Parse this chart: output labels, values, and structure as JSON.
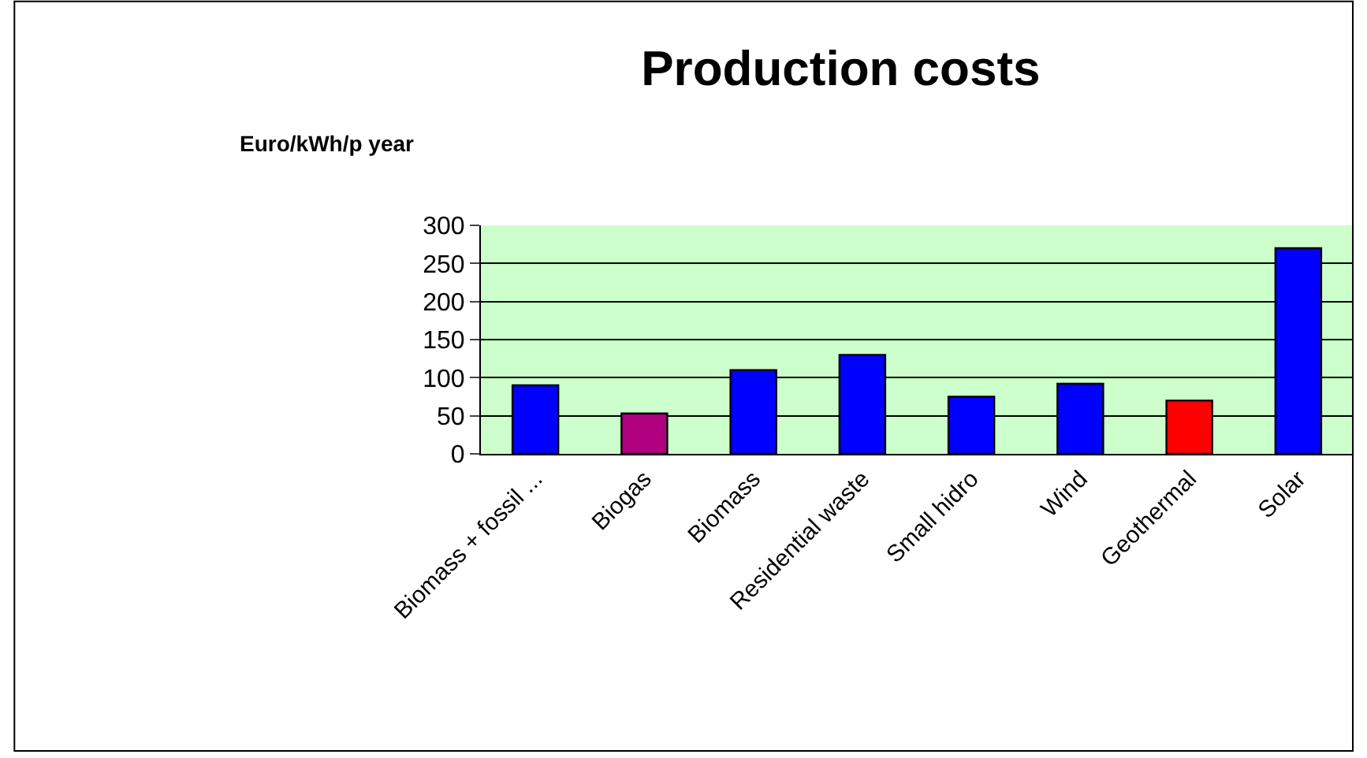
{
  "chart_data": {
    "type": "bar",
    "title": "Production costs",
    "ylabel": "Euro/kWh/p year",
    "categories": [
      "Biomass + fossil ...",
      "Biogas",
      "Biomass",
      "Residential waste",
      "Small hidro",
      "Wind",
      "Geothermal",
      "Solar"
    ],
    "values": [
      90,
      53,
      110,
      130,
      75,
      92,
      70,
      270
    ],
    "colors": [
      "#0000ff",
      "#b0007f",
      "#0000ff",
      "#0000ff",
      "#0000ff",
      "#0000ff",
      "#ff0000",
      "#0000ff"
    ],
    "ylim": [
      0,
      300
    ],
    "yticks": [
      0,
      50,
      100,
      150,
      200,
      250,
      300
    ],
    "grid": "y"
  }
}
